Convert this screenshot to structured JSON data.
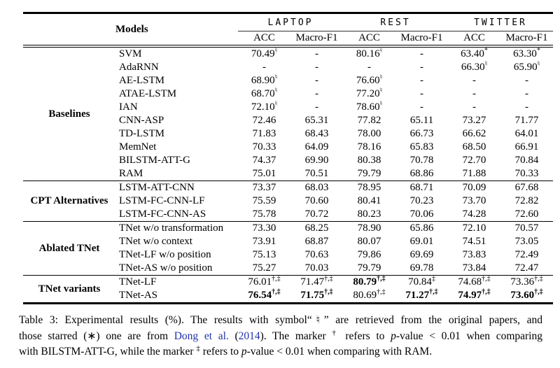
{
  "page": {
    "background": "#ffffff",
    "text_color": "#000000",
    "link_color": "#2233aa"
  },
  "table": {
    "models_label": "Models",
    "datasets": [
      "LAPTOP",
      "REST",
      "TWITTER"
    ],
    "metric_headers": [
      "ACC",
      "Macro-F1",
      "ACC",
      "Macro-F1",
      "ACC",
      "Macro-F1"
    ],
    "sections": [
      {
        "group": "Baselines",
        "rows": [
          {
            "model": "SVM",
            "cells": [
              {
                "v": "70.49",
                "sup": "♮"
              },
              {
                "v": "-"
              },
              {
                "v": "80.16",
                "sup": "♮"
              },
              {
                "v": "-"
              },
              {
                "v": "63.40",
                "sup": "*"
              },
              {
                "v": "63.30",
                "sup": "*"
              }
            ]
          },
          {
            "model": "AdaRNN",
            "cells": [
              {
                "v": "-"
              },
              {
                "v": "-"
              },
              {
                "v": "-"
              },
              {
                "v": "-"
              },
              {
                "v": "66.30",
                "sup": "♮"
              },
              {
                "v": "65.90",
                "sup": "♮"
              }
            ]
          },
          {
            "model": "AE-LSTM",
            "cells": [
              {
                "v": "68.90",
                "sup": "♮"
              },
              {
                "v": "-"
              },
              {
                "v": "76.60",
                "sup": "♮"
              },
              {
                "v": "-"
              },
              {
                "v": "-"
              },
              {
                "v": "-"
              }
            ]
          },
          {
            "model": "ATAE-LSTM",
            "cells": [
              {
                "v": "68.70",
                "sup": "♮"
              },
              {
                "v": "-"
              },
              {
                "v": "77.20",
                "sup": "♮"
              },
              {
                "v": "-"
              },
              {
                "v": "-"
              },
              {
                "v": "-"
              }
            ]
          },
          {
            "model": "IAN",
            "cells": [
              {
                "v": "72.10",
                "sup": "♮"
              },
              {
                "v": "-"
              },
              {
                "v": "78.60",
                "sup": "♮"
              },
              {
                "v": "-"
              },
              {
                "v": "-"
              },
              {
                "v": "-"
              }
            ]
          },
          {
            "model": "CNN-ASP",
            "cells": [
              {
                "v": "72.46"
              },
              {
                "v": "65.31"
              },
              {
                "v": "77.82"
              },
              {
                "v": "65.11"
              },
              {
                "v": "73.27"
              },
              {
                "v": "71.77"
              }
            ]
          },
          {
            "model": "TD-LSTM",
            "cells": [
              {
                "v": "71.83"
              },
              {
                "v": "68.43"
              },
              {
                "v": "78.00"
              },
              {
                "v": "66.73"
              },
              {
                "v": "66.62"
              },
              {
                "v": "64.01"
              }
            ]
          },
          {
            "model": "MemNet",
            "cells": [
              {
                "v": "70.33"
              },
              {
                "v": "64.09"
              },
              {
                "v": "78.16"
              },
              {
                "v": "65.83"
              },
              {
                "v": "68.50"
              },
              {
                "v": "66.91"
              }
            ]
          },
          {
            "model": "BILSTM-ATT-G",
            "cells": [
              {
                "v": "74.37"
              },
              {
                "v": "69.90"
              },
              {
                "v": "80.38"
              },
              {
                "v": "70.78"
              },
              {
                "v": "72.70"
              },
              {
                "v": "70.84"
              }
            ]
          },
          {
            "model": "RAM",
            "cells": [
              {
                "v": "75.01"
              },
              {
                "v": "70.51"
              },
              {
                "v": "79.79"
              },
              {
                "v": "68.86"
              },
              {
                "v": "71.88"
              },
              {
                "v": "70.33"
              }
            ]
          }
        ]
      },
      {
        "group": "CPT Alternatives",
        "rows": [
          {
            "model": "LSTM-ATT-CNN",
            "cells": [
              {
                "v": "73.37"
              },
              {
                "v": "68.03"
              },
              {
                "v": "78.95"
              },
              {
                "v": "68.71"
              },
              {
                "v": "70.09"
              },
              {
                "v": "67.68"
              }
            ]
          },
          {
            "model": "LSTM-FC-CNN-LF",
            "cells": [
              {
                "v": "75.59"
              },
              {
                "v": "70.60"
              },
              {
                "v": "80.41"
              },
              {
                "v": "70.23"
              },
              {
                "v": "73.70"
              },
              {
                "v": "72.82"
              }
            ]
          },
          {
            "model": "LSTM-FC-CNN-AS",
            "cells": [
              {
                "v": "75.78"
              },
              {
                "v": "70.72"
              },
              {
                "v": "80.23"
              },
              {
                "v": "70.06"
              },
              {
                "v": "74.28"
              },
              {
                "v": "72.60"
              }
            ]
          }
        ]
      },
      {
        "group": "Ablated TNet",
        "rows": [
          {
            "model": "TNet w/o transformation",
            "cells": [
              {
                "v": "73.30"
              },
              {
                "v": "68.25"
              },
              {
                "v": "78.90"
              },
              {
                "v": "65.86"
              },
              {
                "v": "72.10"
              },
              {
                "v": "70.57"
              }
            ]
          },
          {
            "model": "TNet w/o context",
            "cells": [
              {
                "v": "73.91"
              },
              {
                "v": "68.87"
              },
              {
                "v": "80.07"
              },
              {
                "v": "69.01"
              },
              {
                "v": "74.51"
              },
              {
                "v": "73.05"
              }
            ]
          },
          {
            "model": "TNet-LF w/o position",
            "cells": [
              {
                "v": "75.13"
              },
              {
                "v": "70.63"
              },
              {
                "v": "79.86"
              },
              {
                "v": "69.69"
              },
              {
                "v": "73.83"
              },
              {
                "v": "72.49"
              }
            ]
          },
          {
            "model": "TNet-AS w/o position",
            "cells": [
              {
                "v": "75.27"
              },
              {
                "v": "70.03"
              },
              {
                "v": "79.79"
              },
              {
                "v": "69.78"
              },
              {
                "v": "73.84"
              },
              {
                "v": "72.47"
              }
            ]
          }
        ]
      },
      {
        "group": "TNet variants",
        "rows": [
          {
            "model": "TNet-LF",
            "cells": [
              {
                "v": "76.01",
                "sup": "†,‡"
              },
              {
                "v": "71.47",
                "sup": "†,‡"
              },
              {
                "v": "80.79",
                "sup": "†,‡",
                "bold": true
              },
              {
                "v": "70.84",
                "sup": "‡"
              },
              {
                "v": "74.68",
                "sup": "†,‡"
              },
              {
                "v": "73.36",
                "sup": "†,‡"
              }
            ]
          },
          {
            "model": "TNet-AS",
            "cells": [
              {
                "v": "76.54",
                "sup": "†,‡",
                "bold": true
              },
              {
                "v": "71.75",
                "sup": "†,‡",
                "bold": true
              },
              {
                "v": "80.69",
                "sup": "†,‡"
              },
              {
                "v": "71.27",
                "sup": "†,‡",
                "bold": true
              },
              {
                "v": "74.97",
                "sup": "†,‡",
                "bold": true
              },
              {
                "v": "73.60",
                "sup": "†,‡",
                "bold": true
              }
            ]
          }
        ]
      }
    ]
  },
  "caption": {
    "lines": [
      [
        {
          "t": "Table 3: Experimental results (%). The results with symbol“♮” are retrieved from the original papers, and"
        }
      ],
      [
        {
          "t": "those starred (∗) one are from "
        },
        {
          "t": "Dong et al.",
          "style": "link"
        },
        {
          "t": " ("
        },
        {
          "t": "2014",
          "style": "link"
        },
        {
          "t": "). The marker "
        },
        {
          "t": "†",
          "style": "sup"
        },
        {
          "t": " refers to "
        },
        {
          "t": "p",
          "style": "italic"
        },
        {
          "t": "-value < 0.01 when comparing"
        }
      ],
      [
        {
          "t": "with BILSTM-ATT-G, while the marker "
        },
        {
          "t": "‡",
          "style": "sup"
        },
        {
          "t": " refers to "
        },
        {
          "t": "p",
          "style": "italic"
        },
        {
          "t": "-value < 0.01 when comparing with RAM."
        }
      ]
    ]
  }
}
